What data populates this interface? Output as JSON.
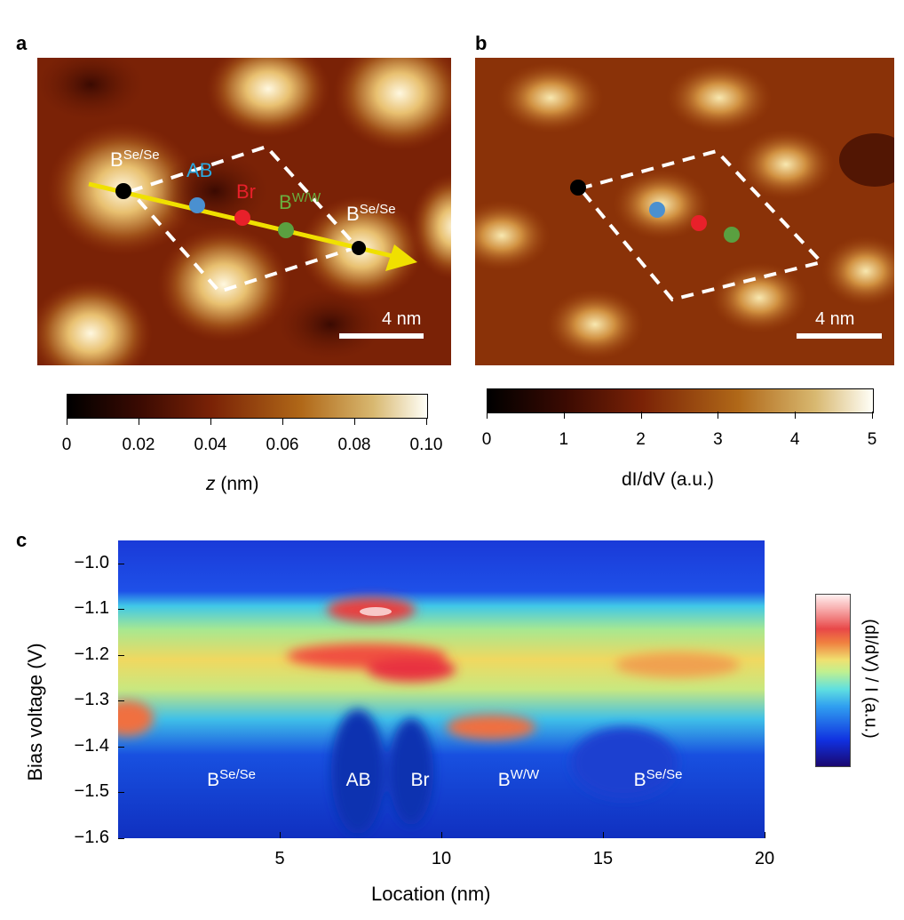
{
  "panels": {
    "a": {
      "label": "a",
      "scale_bar": "4 nm",
      "annotations": {
        "bsese_left_base": "B",
        "bsese_left_sup": "Se/Se",
        "ab": "AB",
        "br": "Br",
        "bww_base": "B",
        "bww_sup": "W/W",
        "bsese_right_base": "B",
        "bsese_right_sup": "Se/Se"
      },
      "colorbar": {
        "ticks": [
          "0",
          "0.02",
          "0.04",
          "0.06",
          "0.08",
          "0.10"
        ],
        "label_var": "z",
        "label_unit": " (nm)"
      }
    },
    "b": {
      "label": "b",
      "scale_bar": "4 nm",
      "colorbar": {
        "ticks": [
          "0",
          "1",
          "2",
          "3",
          "4",
          "5"
        ],
        "label": "dI/dV (a.u.)"
      }
    },
    "c": {
      "label": "c"
    }
  },
  "colors": {
    "black_site": "#000000",
    "ab": "#4a90d0",
    "br": "#e8202a",
    "bww": "#5aa040",
    "arrow": "#f0e000"
  },
  "chart_data": {
    "type": "heatmap",
    "xlabel": "Location (nm)",
    "ylabel": "Bias voltage (V)",
    "xlim": [
      0,
      20
    ],
    "ylim": [
      -1.6,
      -0.95
    ],
    "xticks": [
      "5",
      "10",
      "15",
      "20"
    ],
    "xtick_values": [
      5,
      10,
      15,
      20
    ],
    "yticks": [
      "-1.0",
      "-1.1",
      "-1.2",
      "-1.3",
      "-1.4",
      "-1.5",
      "-1.6"
    ],
    "ytick_values": [
      -1.0,
      -1.1,
      -1.2,
      -1.3,
      -1.4,
      -1.5,
      -1.6
    ],
    "colorbar_label": "(dI/dV) / I (a.u.)",
    "site_labels": [
      {
        "base": "B",
        "sup": "Se/Se",
        "x": 3.3
      },
      {
        "base": "AB",
        "sup": "",
        "x": 7.6
      },
      {
        "base": "Br",
        "sup": "",
        "x": 9.6
      },
      {
        "base": "B",
        "sup": "W/W",
        "x": 12.3
      },
      {
        "base": "B",
        "sup": "Se/Se",
        "x": 16.5
      }
    ]
  }
}
